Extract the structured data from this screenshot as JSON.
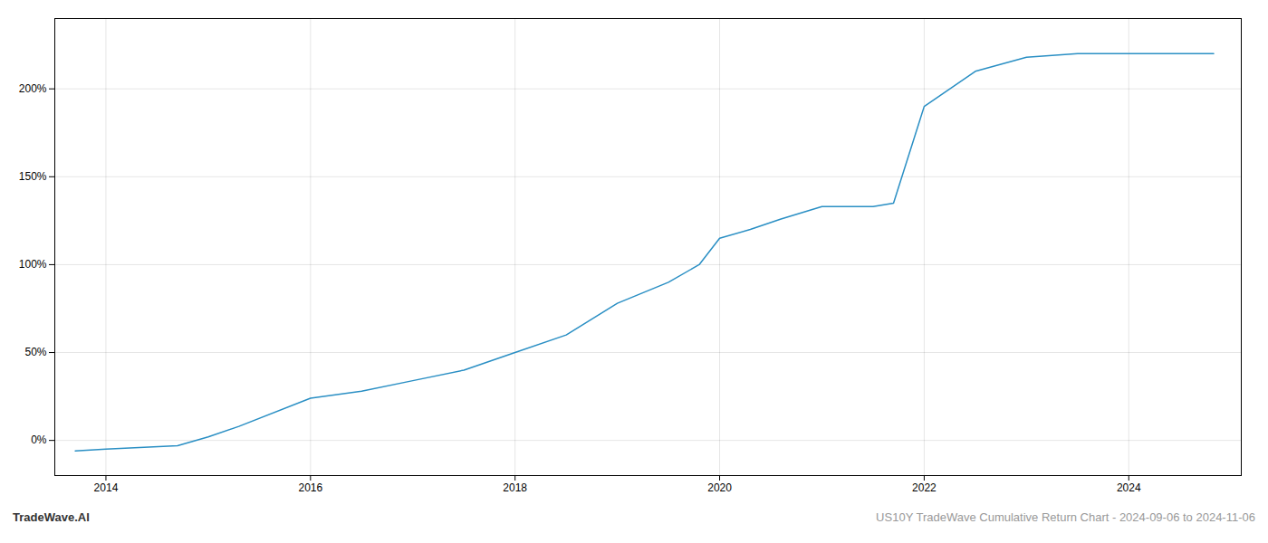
{
  "chart_data": {
    "type": "line",
    "title": "US10Y TradeWave Cumulative Return Chart - 2024-09-06 to 2024-11-06",
    "annotations": [
      "TradeWave.AI"
    ],
    "x": [
      2013.7,
      2014.0,
      2014.7,
      2015.0,
      2015.3,
      2016.0,
      2016.5,
      2017.0,
      2017.5,
      2018.0,
      2018.5,
      2019.0,
      2019.5,
      2019.8,
      2020.0,
      2020.3,
      2020.6,
      2021.0,
      2021.5,
      2021.7,
      2022.0,
      2022.5,
      2023.0,
      2023.5,
      2023.8,
      2024.0,
      2024.83
    ],
    "values": [
      -6,
      -5,
      -3,
      2,
      8,
      24,
      28,
      34,
      40,
      50,
      60,
      78,
      90,
      100,
      115,
      120,
      126,
      133,
      133,
      135,
      190,
      210,
      218,
      220,
      220,
      220,
      220
    ],
    "color": "#2a8fc4",
    "xlim": [
      2013.5,
      2025.1
    ],
    "ylim": [
      -20,
      240
    ],
    "xticks": [
      2014,
      2016,
      2018,
      2020,
      2022,
      2024
    ],
    "yticks": [
      {
        "value": 0,
        "label": "0%"
      },
      {
        "value": 50,
        "label": "50%"
      },
      {
        "value": 100,
        "label": "100%"
      },
      {
        "value": 150,
        "label": "150%"
      },
      {
        "value": 200,
        "label": "200%"
      }
    ],
    "grid": true
  }
}
